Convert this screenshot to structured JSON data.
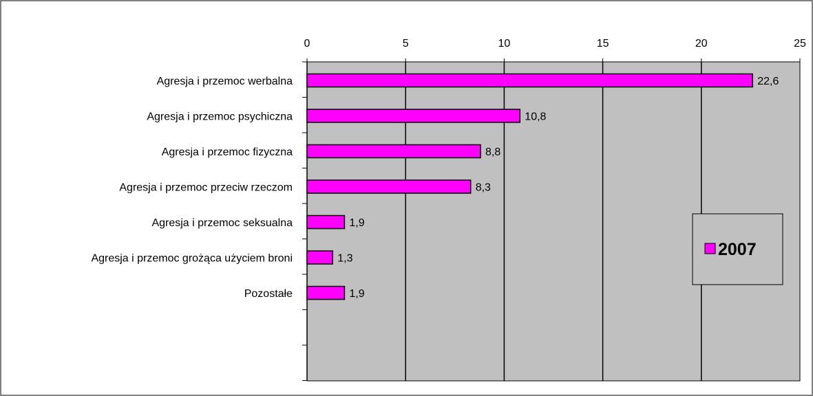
{
  "chart_data": {
    "type": "bar",
    "orientation": "horizontal",
    "categories": [
      "Agresja i przemoc werbalna",
      "Agresja i przemoc psychiczna",
      "Agresja i przemoc fizyczna",
      "Agresja i przemoc przeciw rzeczom",
      "Agresja i przemoc seksualna",
      "Agresja i przemoc grożąca użyciem broni",
      "Pozostałe"
    ],
    "series": [
      {
        "name": "2007",
        "values": [
          22.6,
          10.8,
          8.8,
          8.3,
          1.9,
          1.3,
          1.9
        ]
      }
    ],
    "data_labels": [
      "22,6",
      "10,8",
      "8,8",
      "8,3",
      "1,9",
      "1,3",
      "1,9"
    ],
    "xlim": [
      0,
      25
    ],
    "x_ticks": [
      0,
      5,
      10,
      15,
      20,
      25
    ],
    "x_tick_labels": [
      "0",
      "5",
      "10",
      "15",
      "20",
      "25"
    ],
    "x_axis_position": "top",
    "grid": true,
    "legend": {
      "position": "right",
      "label": "2007"
    },
    "colors": {
      "bar_fill": "#ff00ff",
      "bar_stroke": "#000000",
      "plot_background": "#c0c0c0",
      "gridline": "#000000",
      "page_background": "#ffffff"
    }
  }
}
